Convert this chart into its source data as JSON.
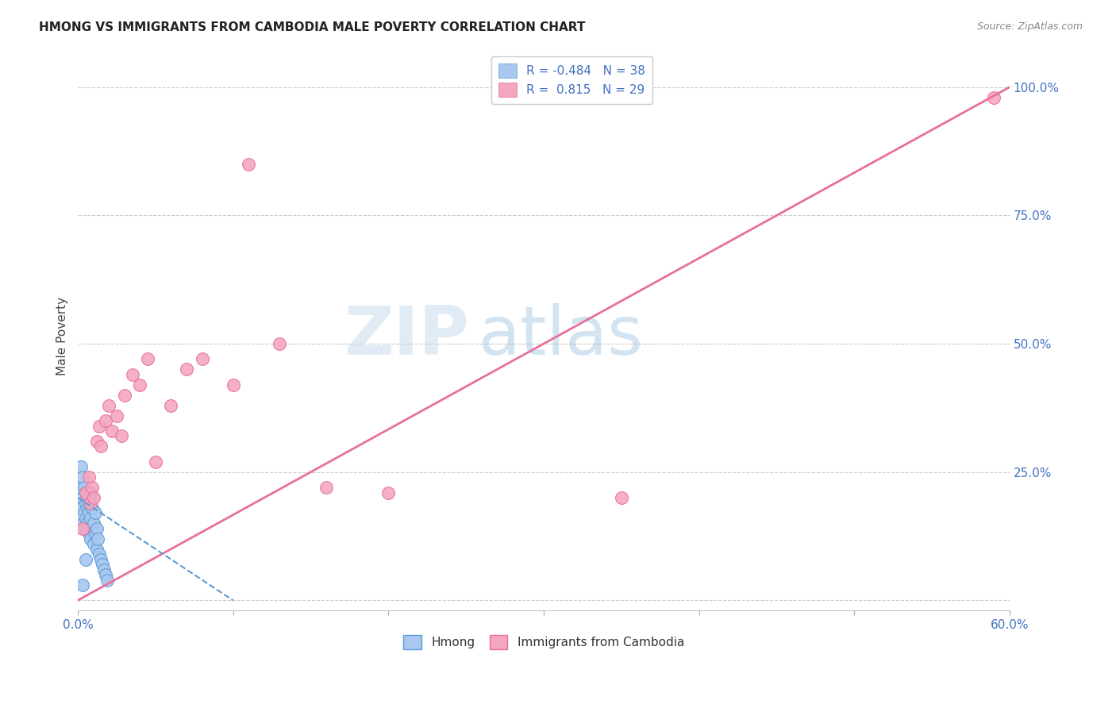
{
  "title": "HMONG VS IMMIGRANTS FROM CAMBODIA MALE POVERTY CORRELATION CHART",
  "source": "Source: ZipAtlas.com",
  "ylabel": "Male Poverty",
  "x_min": 0.0,
  "x_max": 0.6,
  "y_min": 0.0,
  "y_max": 1.05,
  "x_ticks": [
    0.0,
    0.1,
    0.2,
    0.3,
    0.4,
    0.5,
    0.6
  ],
  "x_tick_labels": [
    "0.0%",
    "",
    "",
    "",
    "",
    "",
    "60.0%"
  ],
  "y_ticks": [
    0.0,
    0.25,
    0.5,
    0.75,
    1.0
  ],
  "y_tick_labels": [
    "",
    "25.0%",
    "50.0%",
    "75.0%",
    "100.0%"
  ],
  "hmong_color": "#A8C8F0",
  "hmong_edge_color": "#5B9BD5",
  "cambodia_color": "#F4A6C0",
  "cambodia_edge_color": "#E8709A",
  "hmong_R": -0.484,
  "hmong_N": 38,
  "cambodia_R": 0.815,
  "cambodia_N": 29,
  "legend_label_1": "Hmong",
  "legend_label_2": "Immigrants from Cambodia",
  "watermark_zip": "ZIP",
  "watermark_atlas": "atlas",
  "background_color": "#FFFFFF",
  "hmong_x": [
    0.001,
    0.002,
    0.002,
    0.003,
    0.003,
    0.003,
    0.004,
    0.004,
    0.004,
    0.005,
    0.005,
    0.005,
    0.006,
    0.006,
    0.006,
    0.007,
    0.007,
    0.007,
    0.008,
    0.008,
    0.008,
    0.009,
    0.009,
    0.01,
    0.01,
    0.011,
    0.011,
    0.012,
    0.012,
    0.013,
    0.014,
    0.015,
    0.016,
    0.017,
    0.018,
    0.019,
    0.005,
    0.003
  ],
  "hmong_y": [
    0.22,
    0.26,
    0.18,
    0.2,
    0.15,
    0.24,
    0.17,
    0.22,
    0.14,
    0.19,
    0.16,
    0.21,
    0.18,
    0.15,
    0.2,
    0.17,
    0.13,
    0.19,
    0.16,
    0.12,
    0.21,
    0.14,
    0.18,
    0.15,
    0.11,
    0.13,
    0.17,
    0.1,
    0.14,
    0.12,
    0.09,
    0.08,
    0.07,
    0.06,
    0.05,
    0.04,
    0.08,
    0.03
  ],
  "cambodia_x": [
    0.003,
    0.005,
    0.007,
    0.008,
    0.009,
    0.01,
    0.012,
    0.014,
    0.015,
    0.018,
    0.02,
    0.022,
    0.025,
    0.028,
    0.03,
    0.035,
    0.04,
    0.045,
    0.05,
    0.06,
    0.07,
    0.08,
    0.1,
    0.11,
    0.13,
    0.16,
    0.2,
    0.35,
    0.59
  ],
  "cambodia_y": [
    0.14,
    0.21,
    0.24,
    0.19,
    0.22,
    0.2,
    0.31,
    0.34,
    0.3,
    0.35,
    0.38,
    0.33,
    0.36,
    0.32,
    0.4,
    0.44,
    0.42,
    0.47,
    0.27,
    0.38,
    0.45,
    0.47,
    0.42,
    0.85,
    0.5,
    0.22,
    0.21,
    0.2,
    0.98
  ]
}
